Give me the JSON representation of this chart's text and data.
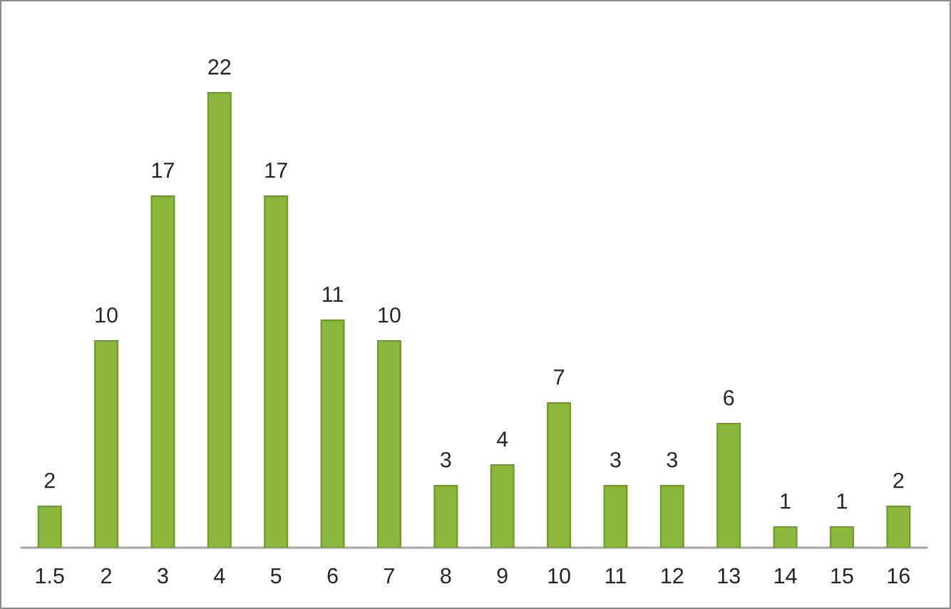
{
  "chart_data": {
    "type": "bar",
    "categories": [
      "1.5",
      "2",
      "3",
      "4",
      "5",
      "6",
      "7",
      "8",
      "9",
      "10",
      "11",
      "12",
      "13",
      "14",
      "15",
      "16"
    ],
    "values": [
      2,
      10,
      17,
      22,
      17,
      11,
      10,
      3,
      4,
      7,
      3,
      3,
      6,
      1,
      1,
      2
    ],
    "color": "#8db63c",
    "data_labels": true,
    "grid": false,
    "legend": false
  }
}
